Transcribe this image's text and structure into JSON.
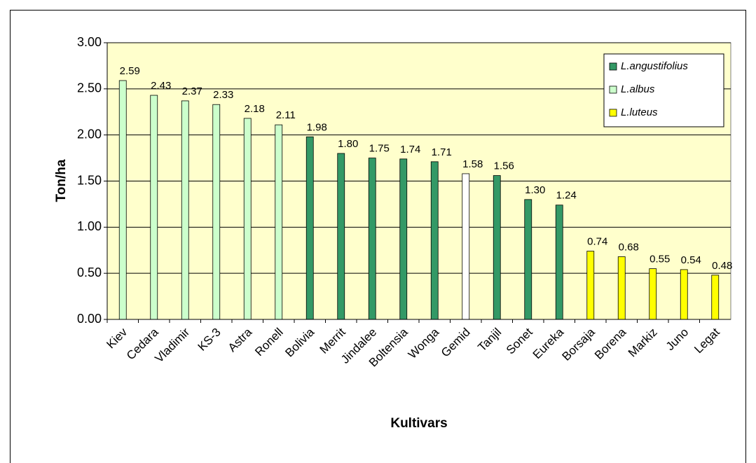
{
  "chart_data": {
    "type": "bar",
    "xlabel": "Kultivars",
    "ylabel": "Ton/ha",
    "categories": [
      "Kiev",
      "Cedara",
      "Vladimir",
      "KS-3",
      "Astra",
      "Ronell",
      "Bolivia",
      "Merrit",
      "Jindalee",
      "Boltensia",
      "Wonga",
      "Gemid",
      "Tanjil",
      "Sonet",
      "Eureka",
      "Borsaja",
      "Borena",
      "Markiz",
      "Juno",
      "Legat"
    ],
    "values": [
      2.59,
      2.43,
      2.37,
      2.33,
      2.18,
      2.11,
      1.98,
      1.8,
      1.75,
      1.74,
      1.71,
      1.58,
      1.56,
      1.3,
      1.24,
      0.74,
      0.68,
      0.55,
      0.54,
      0.48
    ],
    "value_labels": [
      "2.59",
      "2.43",
      "2.37",
      "2.33",
      "2.18",
      "2.11",
      "1.98",
      "1.80",
      "1.75",
      "1.74",
      "1.71",
      "1.58",
      "1.56",
      "1.30",
      "1.24",
      "0.74",
      "0.68",
      "0.55",
      "0.54",
      "0.48"
    ],
    "colors": [
      "#ccffcc",
      "#ccffcc",
      "#ccffcc",
      "#ccffcc",
      "#ccffcc",
      "#ccffcc",
      "#339966",
      "#339966",
      "#339966",
      "#339966",
      "#339966",
      "#ffffff",
      "#339966",
      "#339966",
      "#339966",
      "#ffff00",
      "#ffff00",
      "#ffff00",
      "#ffff00",
      "#ffff00"
    ],
    "legend": [
      {
        "name": "L.angustifolius",
        "color": "#339966"
      },
      {
        "name": "L.albus",
        "color": "#ccffcc"
      },
      {
        "name": "L.luteus",
        "color": "#ffff00"
      }
    ],
    "legend_position": "upper right",
    "ylim": [
      0,
      3
    ],
    "yticks": [
      {
        "value": 0,
        "label": "0.00"
      },
      {
        "value": 0.5,
        "label": "0.50"
      },
      {
        "value": 1,
        "label": "1.00"
      },
      {
        "value": 1.5,
        "label": "1.50"
      },
      {
        "value": 2,
        "label": "2.00"
      },
      {
        "value": 2.5,
        "label": "2.50"
      },
      {
        "value": 3,
        "label": "3.00"
      }
    ],
    "grid": true
  }
}
